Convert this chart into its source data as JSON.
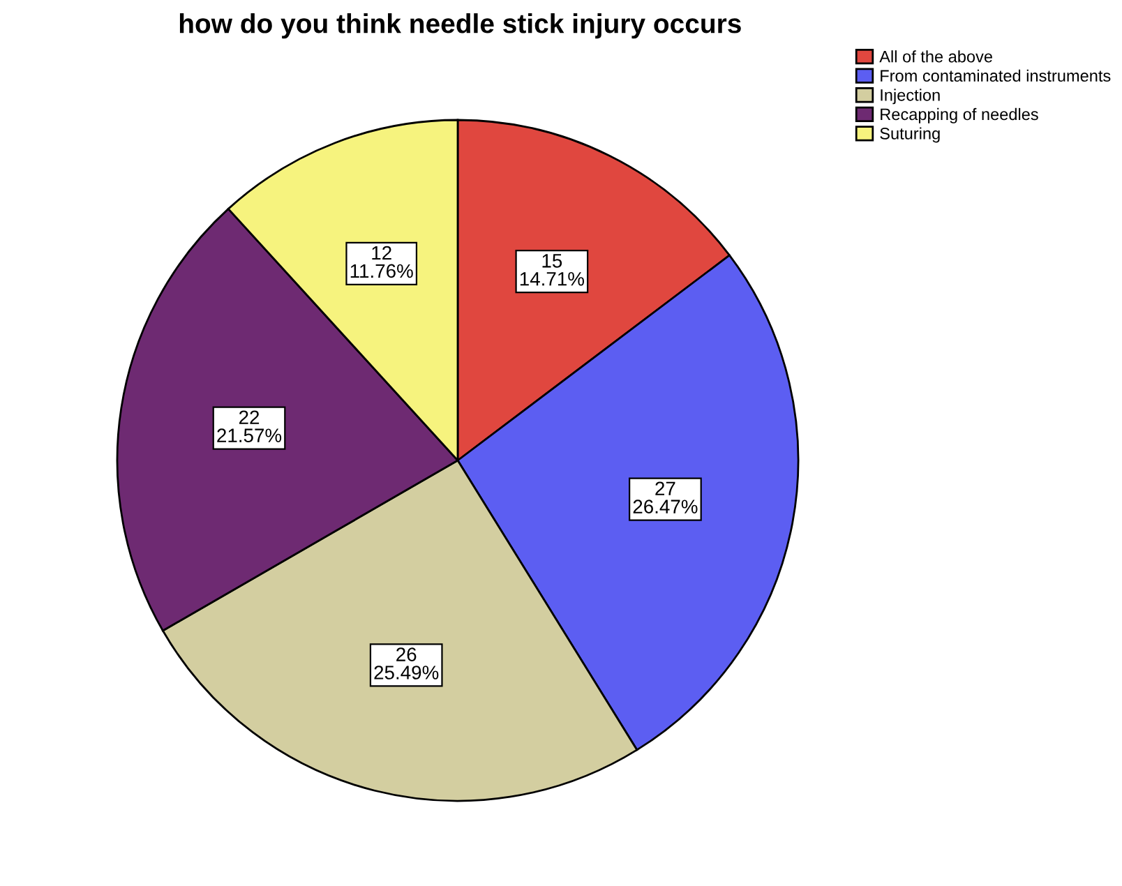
{
  "chart_data": {
    "type": "pie",
    "title": "how do you think needle stick injury occurs",
    "categories": [
      "All of the above",
      "From contaminated instruments",
      "Injection",
      "Recapping of needles",
      "Suturing"
    ],
    "values": [
      15,
      27,
      26,
      22,
      12
    ],
    "colors": [
      "#e0473f",
      "#5c5ef2",
      "#d3cea0",
      "#6e2a72",
      "#f6f37e"
    ],
    "value_labels": [
      "15\n14.71%",
      "27\n26.47%",
      "26\n25.49%",
      "22\n21.57%",
      "12\n11.76%"
    ],
    "legend": "top right"
  }
}
